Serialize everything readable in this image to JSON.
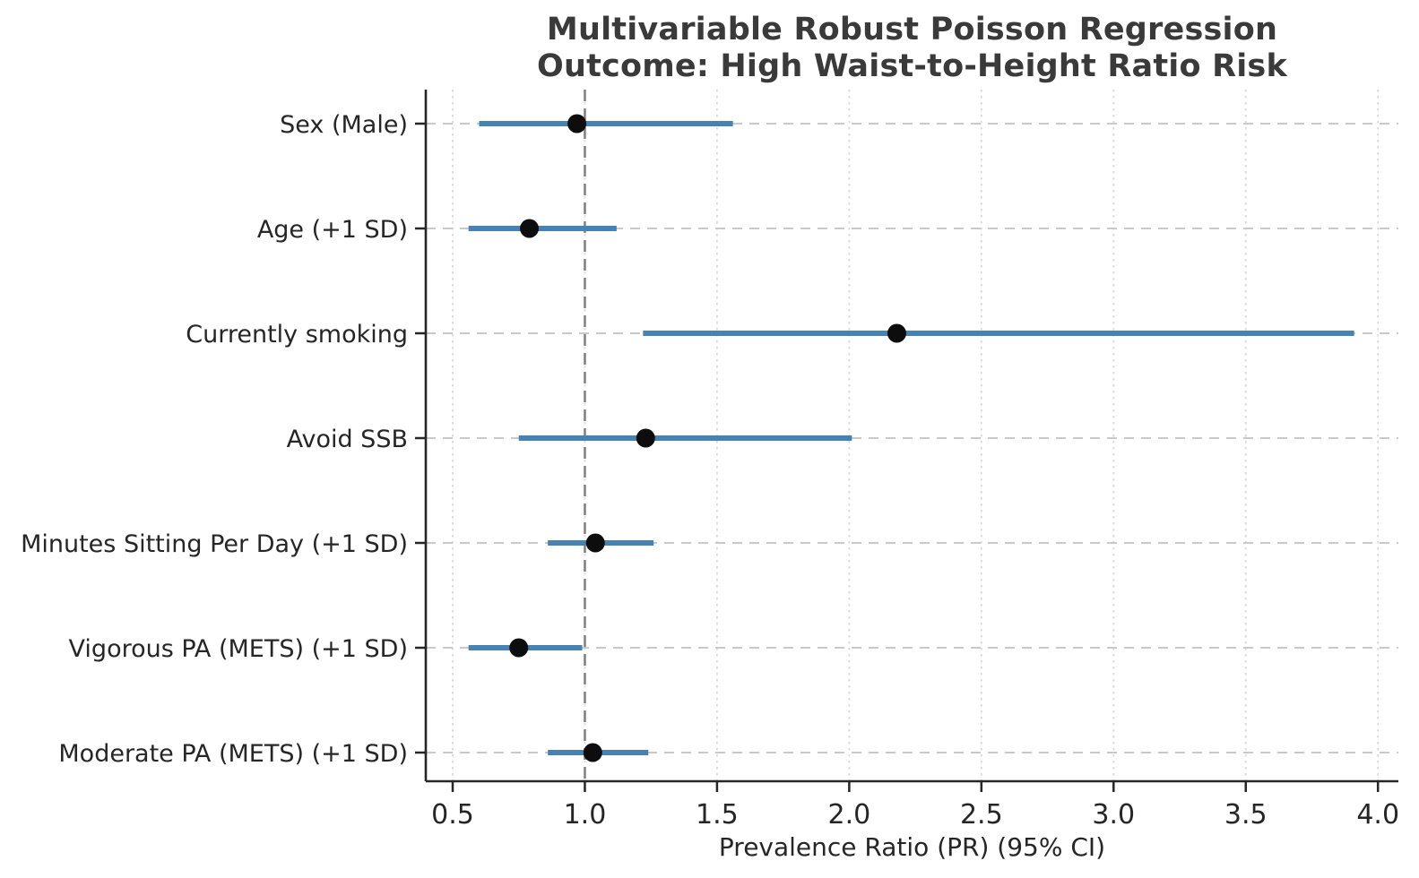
{
  "figure": {
    "title": "Multivariable Robust Poisson Regression",
    "subtitle": "Outcome: High Waist-to-Height Ratio Risk",
    "xlabel": "Prevalence Ratio (PR) (95% CI)"
  },
  "chart_data": {
    "type": "scatter",
    "subtype": "forest_plot_with_95ci_error_bars",
    "title": "Multivariable Robust Poisson Regression",
    "subtitle": "Outcome: High Waist-to-Height Ratio Risk",
    "xlabel": "Prevalence Ratio (PR) (95% CI)",
    "ylabel": "",
    "xlim": [
      0.39,
      4.08
    ],
    "x_ticks": [
      0.5,
      1.0,
      1.5,
      2.0,
      2.5,
      3.0,
      3.5,
      4.0
    ],
    "x_tick_labels": [
      "0.5",
      "1.0",
      "1.5",
      "2.0",
      "2.5",
      "3.0",
      "3.5",
      "4.0"
    ],
    "reference_line_x": 1.0,
    "legend": "none",
    "grid": "vertical dotted gridlines at each x tick; horizontal dashed guide line per row",
    "rows": [
      {
        "label": "Sex (Male)",
        "pr": 0.97,
        "ci_low": 0.6,
        "ci_high": 1.56
      },
      {
        "label": "Age (+1 SD)",
        "pr": 0.79,
        "ci_low": 0.56,
        "ci_high": 1.12
      },
      {
        "label": "Currently smoking",
        "pr": 2.18,
        "ci_low": 1.22,
        "ci_high": 3.91
      },
      {
        "label": "Avoid SSB",
        "pr": 1.23,
        "ci_low": 0.75,
        "ci_high": 2.01
      },
      {
        "label": "Minutes Sitting Per Day (+1 SD)",
        "pr": 1.04,
        "ci_low": 0.86,
        "ci_high": 1.26
      },
      {
        "label": "Vigorous PA (METS) (+1 SD)",
        "pr": 0.75,
        "ci_low": 0.56,
        "ci_high": 0.99
      },
      {
        "label": "Moderate PA (METS) (+1 SD)",
        "pr": 1.03,
        "ci_low": 0.86,
        "ci_high": 1.24
      }
    ],
    "colors": {
      "ci_bar": "#4682b4",
      "point": "#0d0d0d",
      "reference_line": "#7f7f7f",
      "row_guide_line": "#c9c9c9",
      "gridline": "#d9d9d9",
      "axis": "#262626",
      "tick_label": "#262626",
      "title": "#3a3a3a",
      "background": "#ffffff"
    }
  }
}
